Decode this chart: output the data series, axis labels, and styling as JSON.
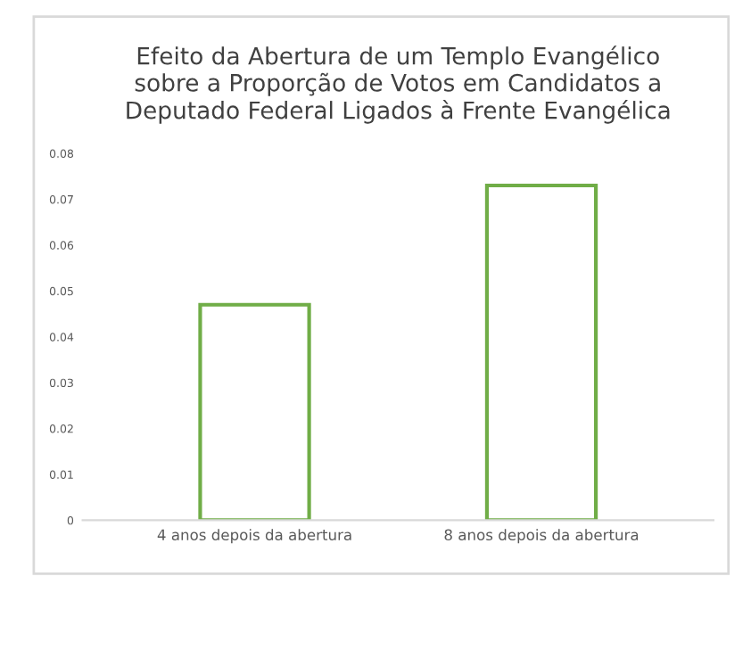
{
  "chart_data": {
    "type": "bar",
    "title": "Efeito da Abertura de um Templo Evangélico\nsobre a Proporção de Votos em Candidatos a\nDeputado Federal Ligados à Frente Evangélica",
    "categories": [
      "4 anos depois da abertura",
      "8 anos depois da abertura"
    ],
    "values": [
      0.047,
      0.073
    ],
    "color": "#70ad47",
    "ylim": [
      0,
      0.08
    ],
    "yticks": [
      0,
      0.01,
      0.02,
      0.03,
      0.04,
      0.05,
      0.06,
      0.07,
      0.08
    ],
    "grid": false
  }
}
